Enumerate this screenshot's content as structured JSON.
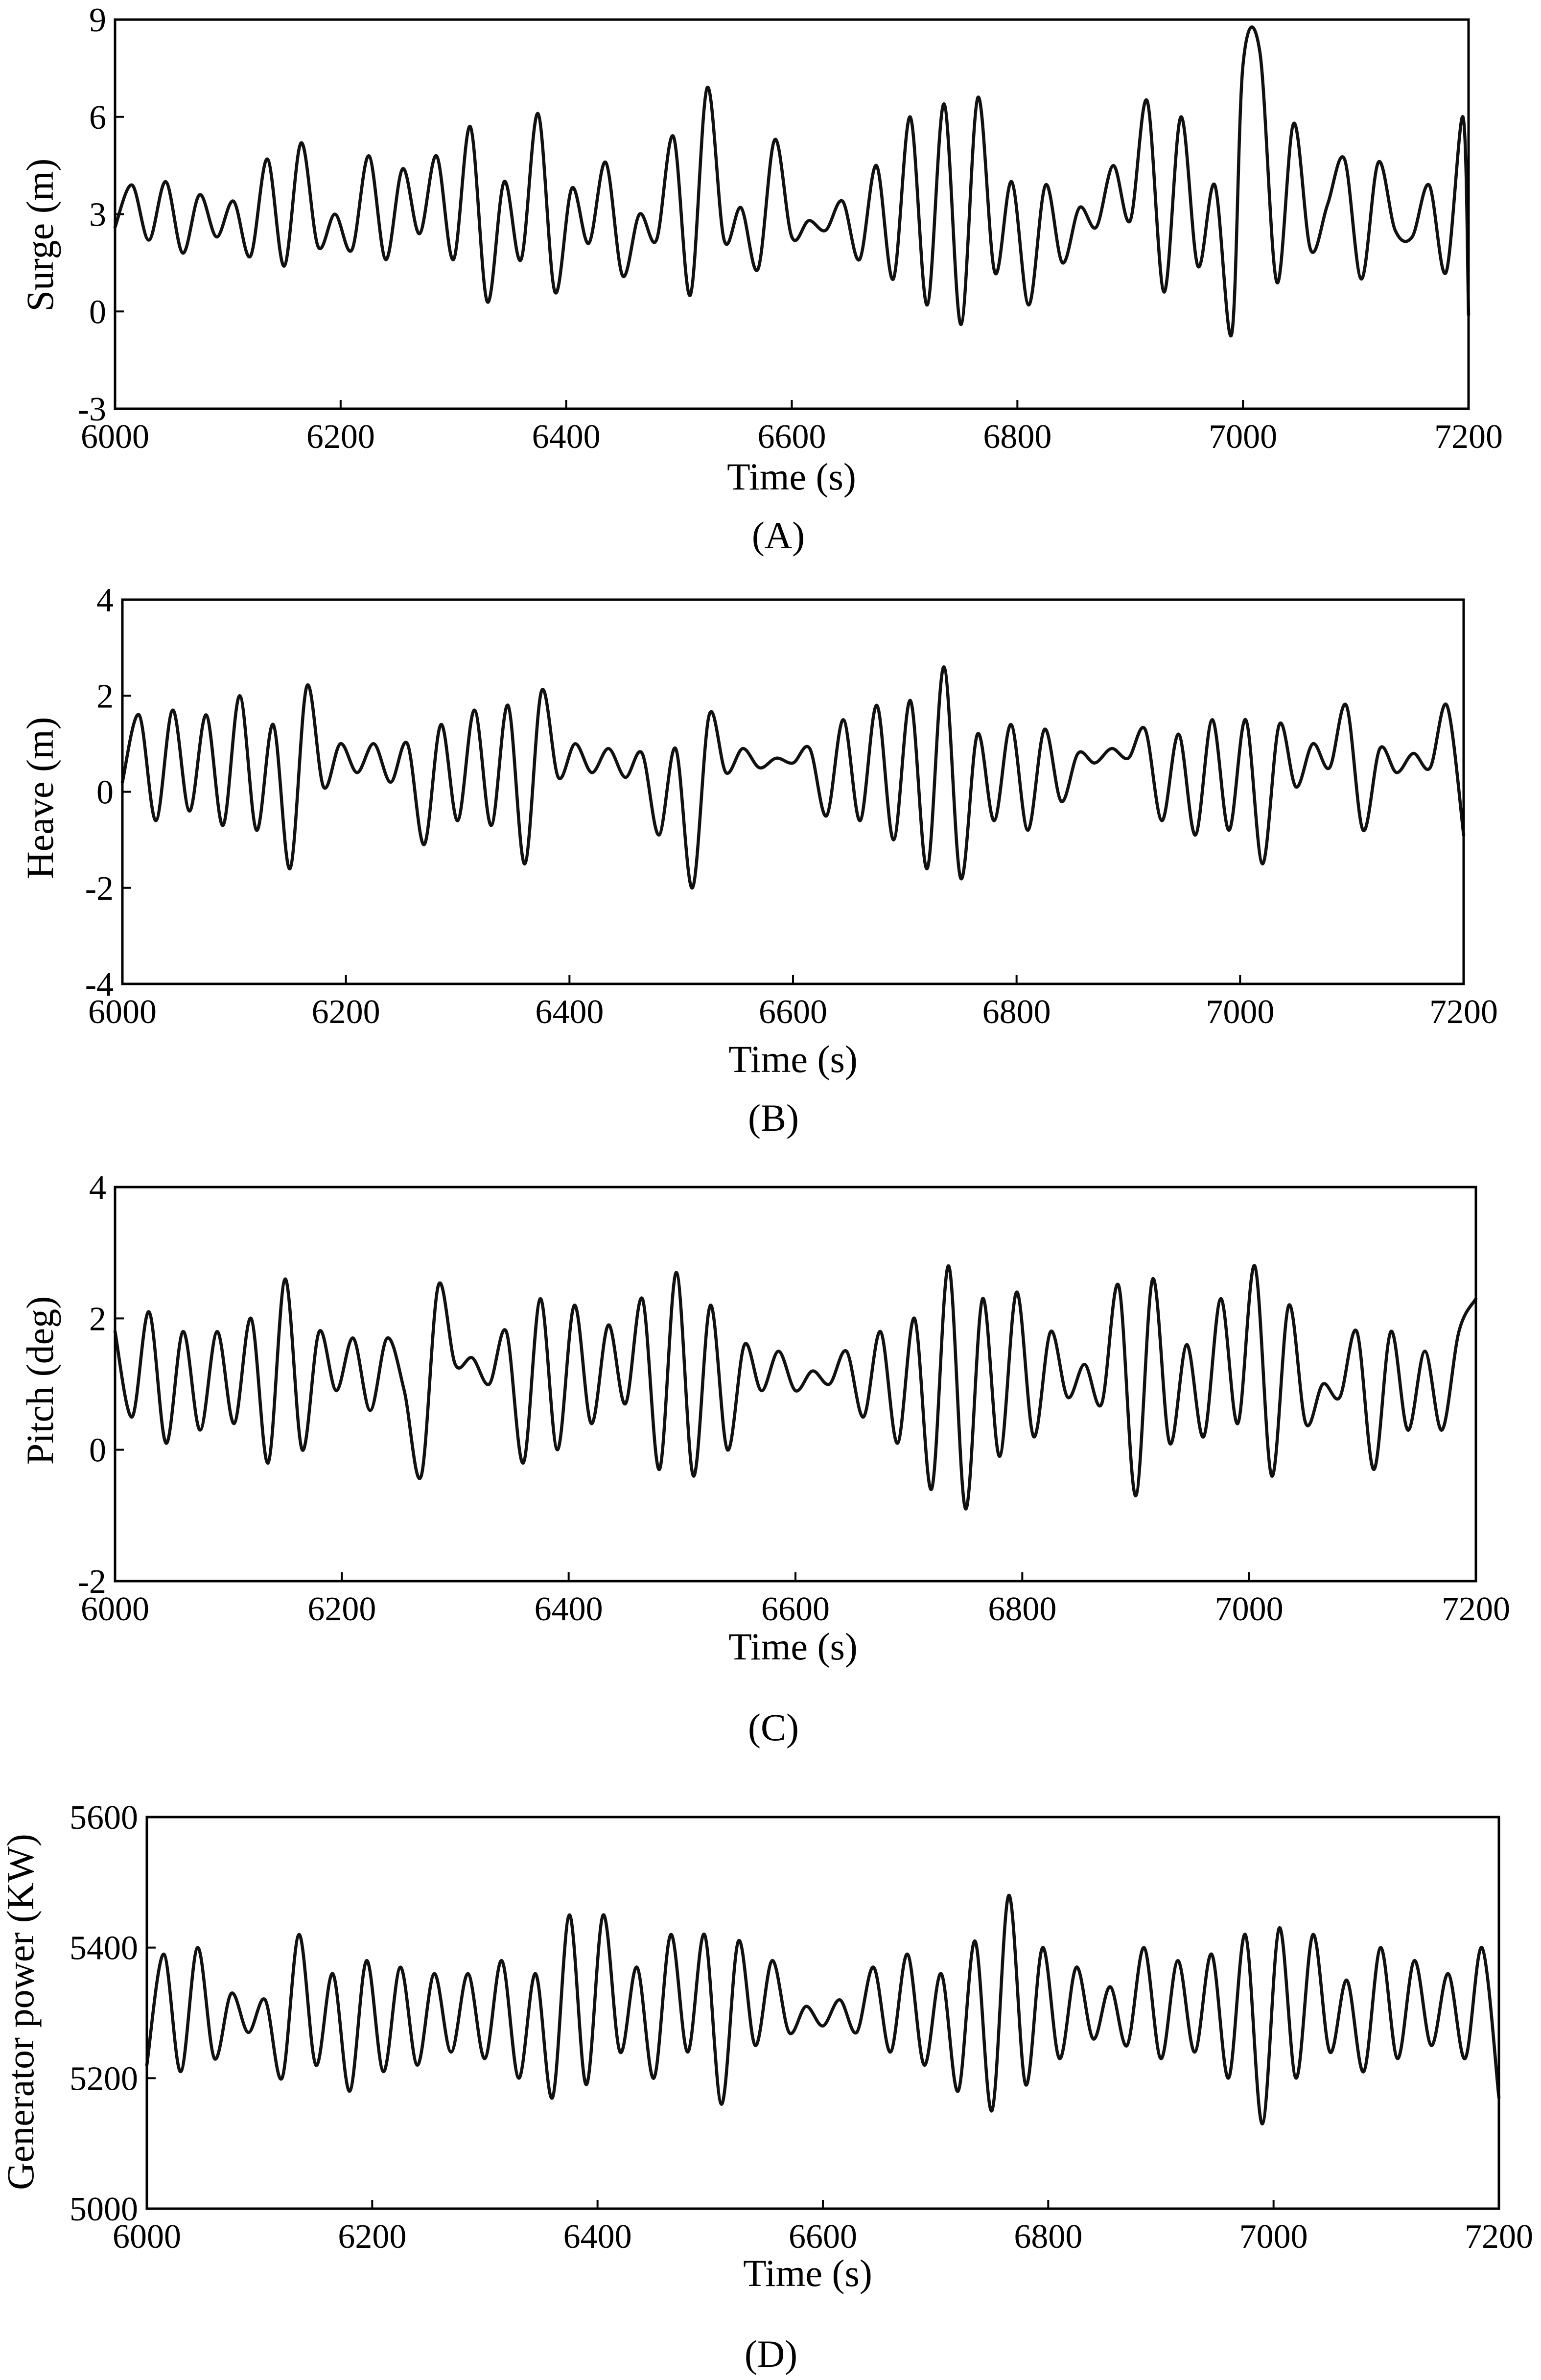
{
  "chart_data": [
    {
      "type": "line",
      "caption": "(A)",
      "xlabel": "Time (s)",
      "ylabel": "Surge (m)",
      "xlim": [
        6000,
        7200
      ],
      "ylim": [
        -3,
        9
      ],
      "xticks": [
        6000,
        6200,
        6400,
        6600,
        6800,
        7000,
        7200
      ],
      "yticks": [
        -3,
        0,
        3,
        6,
        9
      ],
      "series": [
        {
          "x": [
            6000,
            6015,
            6030,
            6045,
            6060,
            6075,
            6090,
            6105,
            6120,
            6135,
            6150,
            6165,
            6180,
            6195,
            6210,
            6225,
            6240,
            6255,
            6270,
            6285,
            6300,
            6315,
            6330,
            6345,
            6360,
            6375,
            6390,
            6405,
            6420,
            6435,
            6450,
            6465,
            6480,
            6495,
            6510,
            6525,
            6540,
            6555,
            6570,
            6585,
            6600,
            6615,
            6630,
            6645,
            6660,
            6675,
            6690,
            6705,
            6720,
            6735,
            6750,
            6765,
            6780,
            6795,
            6810,
            6825,
            6840,
            6855,
            6870,
            6885,
            6900,
            6915,
            6930,
            6945,
            6960,
            6975,
            6990,
            7000,
            7015,
            7030,
            7045,
            7060,
            7075,
            7090,
            7105,
            7120,
            7135,
            7150,
            7165,
            7180,
            7195,
            7200
          ],
          "y": [
            2.6,
            3.9,
            2.2,
            4.0,
            1.8,
            3.6,
            2.3,
            3.4,
            1.7,
            4.7,
            1.4,
            5.2,
            2.0,
            3.0,
            1.9,
            4.8,
            1.6,
            4.4,
            2.4,
            4.8,
            1.6,
            5.7,
            0.3,
            4.0,
            1.6,
            6.1,
            0.6,
            3.8,
            2.1,
            4.6,
            1.1,
            3.0,
            2.2,
            5.4,
            0.5,
            6.9,
            2.2,
            3.2,
            1.3,
            5.3,
            2.3,
            2.8,
            2.5,
            3.4,
            1.6,
            4.5,
            1.0,
            6.0,
            0.2,
            6.4,
            -0.4,
            6.6,
            1.2,
            4.0,
            0.2,
            3.9,
            1.5,
            3.2,
            2.6,
            4.5,
            2.8,
            6.5,
            0.6,
            6.0,
            1.4,
            3.9,
            -0.7,
            7.6,
            8.0,
            0.9,
            5.8,
            1.9,
            3.3,
            4.7,
            1.0,
            4.6,
            2.5,
            2.3,
            3.9,
            1.2,
            6.0,
            -0.1
          ]
        }
      ]
    },
    {
      "type": "line",
      "caption": "(B)",
      "xlabel": "Time (s)",
      "ylabel": "Heave (m)",
      "xlim": [
        6000,
        7200
      ],
      "ylim": [
        -4,
        4
      ],
      "xticks": [
        6000,
        6200,
        6400,
        6600,
        6800,
        7000,
        7200
      ],
      "yticks": [
        -4,
        -2,
        0,
        2,
        4
      ],
      "series": [
        {
          "x": [
            6000,
            6015,
            6030,
            6045,
            6060,
            6075,
            6090,
            6105,
            6120,
            6135,
            6150,
            6165,
            6180,
            6195,
            6210,
            6225,
            6240,
            6255,
            6270,
            6285,
            6300,
            6315,
            6330,
            6345,
            6360,
            6375,
            6390,
            6405,
            6420,
            6435,
            6450,
            6465,
            6480,
            6495,
            6510,
            6525,
            6540,
            6555,
            6570,
            6585,
            6600,
            6615,
            6630,
            6645,
            6660,
            6675,
            6690,
            6705,
            6720,
            6735,
            6750,
            6765,
            6780,
            6795,
            6810,
            6825,
            6840,
            6855,
            6870,
            6885,
            6900,
            6915,
            6930,
            6945,
            6960,
            6975,
            6990,
            7005,
            7020,
            7035,
            7050,
            7065,
            7080,
            7095,
            7110,
            7125,
            7140,
            7155,
            7170,
            7185,
            7200
          ],
          "y": [
            0.2,
            1.6,
            -0.6,
            1.7,
            -0.4,
            1.6,
            -0.7,
            2.0,
            -0.8,
            1.4,
            -1.6,
            2.2,
            0.1,
            1.0,
            0.4,
            1.0,
            0.2,
            1.0,
            -1.1,
            1.4,
            -0.6,
            1.7,
            -0.7,
            1.8,
            -1.5,
            2.1,
            0.3,
            1.0,
            0.4,
            0.9,
            0.3,
            0.8,
            -0.9,
            0.9,
            -2.0,
            1.6,
            0.4,
            0.9,
            0.5,
            0.7,
            0.6,
            0.9,
            -0.5,
            1.5,
            -0.6,
            1.8,
            -1.0,
            1.9,
            -1.6,
            2.6,
            -1.8,
            1.2,
            -0.6,
            1.4,
            -0.8,
            1.3,
            -0.2,
            0.8,
            0.6,
            0.9,
            0.7,
            1.3,
            -0.6,
            1.2,
            -0.9,
            1.5,
            -0.8,
            1.5,
            -1.5,
            1.4,
            0.1,
            1.0,
            0.5,
            1.8,
            -0.8,
            0.9,
            0.4,
            0.8,
            0.5,
            1.8,
            -0.9
          ]
        }
      ]
    },
    {
      "type": "line",
      "caption": "(C)",
      "xlabel": "Time (s)",
      "ylabel": "Pitch (deg)",
      "xlim": [
        6000,
        7200
      ],
      "ylim": [
        -2,
        4
      ],
      "xticks": [
        6000,
        6200,
        6400,
        6600,
        6800,
        7000,
        7200
      ],
      "yticks": [
        -2,
        0,
        2,
        4
      ],
      "series": [
        {
          "x": [
            6000,
            6015,
            6030,
            6045,
            6060,
            6075,
            6090,
            6105,
            6120,
            6135,
            6150,
            6165,
            6180,
            6195,
            6210,
            6225,
            6240,
            6255,
            6270,
            6285,
            6300,
            6315,
            6330,
            6345,
            6360,
            6375,
            6390,
            6405,
            6420,
            6435,
            6450,
            6465,
            6480,
            6495,
            6510,
            6525,
            6540,
            6555,
            6570,
            6585,
            6600,
            6615,
            6630,
            6645,
            6660,
            6675,
            6690,
            6705,
            6720,
            6735,
            6750,
            6765,
            6780,
            6795,
            6810,
            6825,
            6840,
            6855,
            6870,
            6885,
            6900,
            6915,
            6930,
            6945,
            6960,
            6975,
            6990,
            7005,
            7020,
            7035,
            7050,
            7065,
            7080,
            7095,
            7110,
            7125,
            7140,
            7155,
            7170,
            7185,
            7200
          ],
          "y": [
            1.8,
            0.5,
            2.1,
            0.1,
            1.8,
            0.3,
            1.8,
            0.4,
            2.0,
            -0.2,
            2.6,
            0.0,
            1.8,
            0.9,
            1.7,
            0.6,
            1.7,
            0.9,
            -0.4,
            2.5,
            1.3,
            1.4,
            1.0,
            1.8,
            -0.2,
            2.3,
            0.0,
            2.2,
            0.4,
            1.9,
            0.7,
            2.3,
            -0.3,
            2.7,
            -0.4,
            2.2,
            0.0,
            1.6,
            0.9,
            1.5,
            0.9,
            1.2,
            1.0,
            1.5,
            0.5,
            1.8,
            0.1,
            2.0,
            -0.6,
            2.8,
            -0.9,
            2.3,
            -0.1,
            2.4,
            0.2,
            1.8,
            0.8,
            1.3,
            0.7,
            2.5,
            -0.7,
            2.6,
            0.1,
            1.6,
            0.2,
            2.3,
            0.4,
            2.8,
            -0.4,
            2.2,
            0.4,
            1.0,
            0.8,
            1.8,
            -0.3,
            1.8,
            0.3,
            1.5,
            0.3,
            1.8,
            2.3
          ]
        }
      ]
    },
    {
      "type": "line",
      "caption": "(D)",
      "xlabel": "Time (s)",
      "ylabel": "Generator power (KW)",
      "xlim": [
        6000,
        7200
      ],
      "ylim": [
        5000,
        5600
      ],
      "xticks": [
        6000,
        6200,
        6400,
        6600,
        6800,
        7000,
        7200
      ],
      "yticks": [
        5000,
        5200,
        5400,
        5600
      ],
      "series": [
        {
          "x": [
            6000,
            6015,
            6030,
            6045,
            6060,
            6075,
            6090,
            6105,
            6120,
            6135,
            6150,
            6165,
            6180,
            6195,
            6210,
            6225,
            6240,
            6255,
            6270,
            6285,
            6300,
            6315,
            6330,
            6345,
            6360,
            6375,
            6390,
            6405,
            6420,
            6435,
            6450,
            6465,
            6480,
            6495,
            6510,
            6525,
            6540,
            6555,
            6570,
            6585,
            6600,
            6615,
            6630,
            6645,
            6660,
            6675,
            6690,
            6705,
            6720,
            6735,
            6750,
            6765,
            6780,
            6795,
            6810,
            6825,
            6840,
            6855,
            6870,
            6885,
            6900,
            6915,
            6930,
            6945,
            6960,
            6975,
            6990,
            7005,
            7020,
            7035,
            7050,
            7065,
            7080,
            7095,
            7110,
            7125,
            7140,
            7155,
            7170,
            7185,
            7200
          ],
          "y": [
            5220,
            5390,
            5210,
            5400,
            5230,
            5330,
            5270,
            5320,
            5200,
            5420,
            5220,
            5360,
            5180,
            5380,
            5210,
            5370,
            5220,
            5360,
            5240,
            5360,
            5230,
            5380,
            5200,
            5360,
            5170,
            5450,
            5190,
            5450,
            5240,
            5370,
            5200,
            5420,
            5240,
            5420,
            5160,
            5410,
            5250,
            5380,
            5270,
            5310,
            5280,
            5320,
            5270,
            5370,
            5240,
            5390,
            5220,
            5360,
            5180,
            5410,
            5150,
            5480,
            5190,
            5400,
            5230,
            5370,
            5260,
            5340,
            5250,
            5400,
            5230,
            5380,
            5240,
            5390,
            5200,
            5420,
            5130,
            5430,
            5200,
            5420,
            5240,
            5350,
            5210,
            5400,
            5230,
            5380,
            5250,
            5360,
            5230,
            5400,
            5170
          ]
        }
      ]
    }
  ]
}
